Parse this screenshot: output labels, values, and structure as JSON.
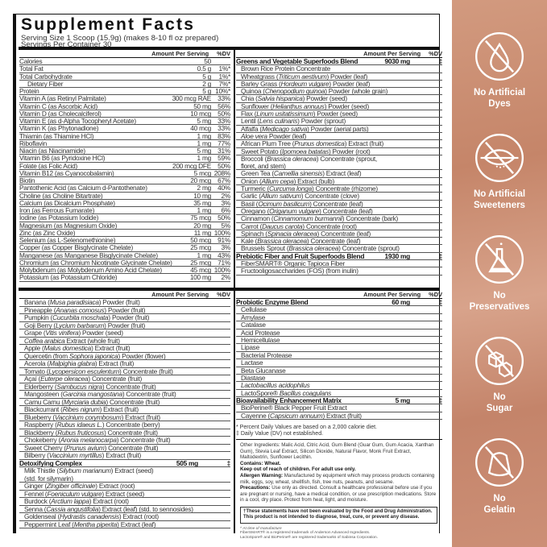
{
  "title": "Supplement Facts",
  "serving_size": "Serving Size 1 Scoop (15.9g) (makes 8-10 fl oz prepared)",
  "servings_per_container": "Servings Per Container 30",
  "header": {
    "amount": "Amount Per Serving",
    "dv": "%DV"
  },
  "nutrients": [
    {
      "n": [
        "Calories"
      ],
      "a": "50",
      "d": ""
    },
    {
      "n": [
        "Total Fat"
      ],
      "a": "0.5 g",
      "d": "1%*"
    },
    {
      "n": [
        "Total Carbohydrate"
      ],
      "a": "5 g",
      "d": "1%*"
    },
    {
      "n": [
        "Dietary Fiber"
      ],
      "a": "2 g",
      "d": "7%*",
      "ind": 1
    },
    {
      "n": [
        "Protein"
      ],
      "a": "5 g",
      "d": "10%*"
    },
    {
      "n": [
        "Vitamin A (as Retinyl Palmitate)"
      ],
      "a": "300 mcg RAE",
      "d": "33%"
    },
    {
      "n": [
        "Vitamin C (as Ascorbic Acid)"
      ],
      "a": "50 mg",
      "d": "56%"
    },
    {
      "n": [
        "Vitamin D (as Cholecalciferol)"
      ],
      "a": "10 mcg",
      "d": "50%"
    },
    {
      "n": [
        "Vitamin E (as d-Alpha Tocopheryl Acetate)"
      ],
      "a": "5 mg",
      "d": "33%"
    },
    {
      "n": [
        "Vitamin K (as Phytonadione)"
      ],
      "a": "40 mcg",
      "d": "33%"
    },
    {
      "n": [
        "Thiamin (as Thiamine HCl)"
      ],
      "a": "1 mg",
      "d": "83%"
    },
    {
      "n": [
        "Riboflavin"
      ],
      "a": "1 mg",
      "d": "77%"
    },
    {
      "n": [
        "Niacin (as Niacinamide)"
      ],
      "a": "5 mg",
      "d": "31%"
    },
    {
      "n": [
        "Vitamin B6 (as Pyridoxine HCl)"
      ],
      "a": "1 mg",
      "d": "59%"
    },
    {
      "n": [
        "Folate (as Folic Acid)"
      ],
      "a": "200 mcg DFE",
      "d": "50%"
    },
    {
      "n": [
        "Vitamin B12 (as Cyanocobalamin)"
      ],
      "a": "5 mcg",
      "d": "208%"
    },
    {
      "n": [
        "Biotin"
      ],
      "a": "20 mcg",
      "d": "67%"
    },
    {
      "n": [
        "Pantothenic Acid (as Calcium d-Pantothenate)"
      ],
      "a": "2 mg",
      "d": "40%"
    },
    {
      "n": [
        "Choline (as Choline Bitartrate)"
      ],
      "a": "10 mg",
      "d": "2%"
    },
    {
      "n": [
        "Calcium (as Dicalcium Phosphate)"
      ],
      "a": "35 mg",
      "d": "3%"
    },
    {
      "n": [
        "Iron (as Ferrous Fumarate)"
      ],
      "a": "1 mg",
      "d": "6%"
    },
    {
      "n": [
        "Iodine (as Potassium Iodide)"
      ],
      "a": "75 mcg",
      "d": "50%"
    },
    {
      "n": [
        "Magnesium (as Magnesium Oxide)"
      ],
      "a": "20 mg",
      "d": "5%"
    },
    {
      "n": [
        "Zinc (as Zinc Oxide)"
      ],
      "a": "11 mg",
      "d": "100%"
    },
    {
      "n": [
        "Selenium (as L-Selenomethionine)"
      ],
      "a": "50 mcg",
      "d": "91%"
    },
    {
      "n": [
        "Copper (as Copper Bisglycinate Chelate)"
      ],
      "a": "25 mcg",
      "d": "3%"
    },
    {
      "n": [
        "Manganese (as Manganese Bisglycinate Chelate)"
      ],
      "a": "1 mg",
      "d": "43%"
    },
    {
      "n": [
        "Chromium (as Chromium Nicotinate Glycinate Chelate)"
      ],
      "a": "25 mcg",
      "d": "71%"
    },
    {
      "n": [
        "Molybdenum (as Molybdenum Amino Acid Chelate)"
      ],
      "a": "45 mcg",
      "d": "100%"
    },
    {
      "n": [
        "Potassium (as Potassium Chloride)"
      ],
      "a": "100 mg",
      "d": "2%"
    }
  ],
  "greens": [
    {
      "n": [
        "Greens and Vegetable Superfoods Blend"
      ],
      "a": "9030 mg",
      "d": "‡",
      "b": 1
    },
    {
      "n": [
        "Brown Rice Protein Concentrate"
      ]
    },
    {
      "n": [
        "Wheatgrass (",
        "Triticum aestivum",
        ") Powder (leaf)"
      ]
    },
    {
      "n": [
        "Barley Grass (",
        "Hordeum vulgare",
        ") Powder (leaf)"
      ]
    },
    {
      "n": [
        "Quinoa (",
        "Chenopodium quinoa",
        ") Powder (whole grain)"
      ]
    },
    {
      "n": [
        "Chia (",
        "Salvia hispanica",
        ") Powder (seed)"
      ]
    },
    {
      "n": [
        "Sunflower (",
        "Helianthus annuus",
        ") Powder (seed)"
      ]
    },
    {
      "n": [
        "Flax (",
        "Linum usitatissimum",
        ") Powder (seed)"
      ]
    },
    {
      "n": [
        "Lentil (",
        "Lens culinaris",
        ") Powder (sprout)"
      ]
    },
    {
      "n": [
        "Alfalfa (",
        "Medicago sativa",
        ") Powder (aerial parts)"
      ]
    },
    {
      "n": [
        "",
        "Aloe vera",
        " Powder (leaf)"
      ]
    },
    {
      "n": [
        "African Plum Tree (",
        "Prunus domestica",
        ") Extract (fruit)"
      ]
    },
    {
      "n": [
        "Sweet Potato (",
        "Ipomoea batatas",
        ") Powder (root)"
      ]
    },
    {
      "n": [
        "Broccoli (",
        "Brassica oleracea",
        ") Concentrate (sprout,"
      ],
      "n2": "floret, and stem)"
    },
    {
      "n": [
        "Green Tea (",
        "Camellia sinensis",
        ") Extract (leaf)"
      ]
    },
    {
      "n": [
        "Onion (",
        "Allium cepa",
        ") Extract (bulb)"
      ]
    },
    {
      "n": [
        "Turmeric (",
        "Curcuma longa",
        ") Concentrate (rhizome)"
      ]
    },
    {
      "n": [
        "Garlic (",
        "Allium sativum",
        ") Concentrate (clove)"
      ]
    },
    {
      "n": [
        "Basil (",
        "Ocimum basilicum",
        ") Concentrate (leaf)"
      ]
    },
    {
      "n": [
        "Oregano (",
        "Origanum vulgare",
        ") Concentrate (leaf)"
      ]
    },
    {
      "n": [
        "Cinnamon (",
        "Cinnamomum burmannii",
        ") Concentrate (bark)"
      ]
    },
    {
      "n": [
        "Carrot (",
        "Daucus carota",
        ") Concentrate (root)"
      ]
    },
    {
      "n": [
        "Spinach (",
        "Spinacia oleracea",
        ") Concentrate (leaf)"
      ]
    },
    {
      "n": [
        "Kale (",
        "Brassica oleracea",
        ") Concentrate (leaf)"
      ]
    },
    {
      "n": [
        "Brussels Sprout (",
        "Brassica oleracea",
        ") Concentrate (sprout)"
      ]
    },
    {
      "n": [
        "Prebiotic Fiber and Fruit Superfoods Blend"
      ],
      "a": "1930 mg",
      "d": "‡",
      "b": 1
    },
    {
      "n": [
        "FiberSMART® Organic Tapioca Fiber"
      ]
    },
    {
      "n": [
        "Fructooligosaccharides (FOS) (from inulin)"
      ]
    }
  ],
  "fruits": [
    {
      "n": [
        "Banana (",
        "Musa paradisiaca",
        ") Powder (fruit)"
      ]
    },
    {
      "n": [
        "Pineapple (",
        "Ananas comosus",
        ") Powder (fruit)"
      ]
    },
    {
      "n": [
        "Pumpkin (",
        "Cucurbita moschata",
        ") Powder (fruit)"
      ]
    },
    {
      "n": [
        "Goji Berry (",
        "Lycium barbarum",
        ") Powder (fruit)"
      ]
    },
    {
      "n": [
        "Grape (",
        "Vitis vinifera",
        ") Powder (seed)"
      ]
    },
    {
      "n": [
        "",
        "Coffea arabica",
        " Extract (whole fruit)"
      ]
    },
    {
      "n": [
        "Apple (",
        "Malus domestica",
        ") Extract (fruit)"
      ]
    },
    {
      "n": [
        "Quercetin (from ",
        "Sophora japonica",
        ") Powder (flower)"
      ]
    },
    {
      "n": [
        "Acerola (",
        "Malpighia glabra",
        ") Extract (fruit)"
      ]
    },
    {
      "n": [
        "Tomato (",
        "Lycopersicon esculentum",
        ") Concentrate (fruit)"
      ]
    },
    {
      "n": [
        "Açaí (",
        "Euterpe oleracea",
        ") Concentrate (fruit)"
      ]
    },
    {
      "n": [
        "Elderberry (",
        "Sambucus nigra",
        ") Concentrate (fruit)"
      ]
    },
    {
      "n": [
        "Mangosteen (",
        "Garcinia mangostana",
        ") Concentrate (fruit)"
      ]
    },
    {
      "n": [
        "Camu Camu (",
        "Myrciaria dubia",
        ") Concentrate (fruit)"
      ]
    },
    {
      "n": [
        "Blackcurrant (",
        "Ribes nigrum",
        ") Extract (fruit)"
      ]
    },
    {
      "n": [
        "Blueberry (",
        "Vaccinium corymbosum",
        ") Extract (fruit)"
      ]
    },
    {
      "n": [
        "Raspberry (",
        "Rubus idaeus L.",
        ") Concentrate (berry)"
      ]
    },
    {
      "n": [
        "Blackberry (",
        "Rubus fruticosus",
        ") Concentrate (fruit)"
      ]
    },
    {
      "n": [
        "Chokeberry (",
        "Aronia melanocarpa",
        ") Concentrate (fruit)"
      ]
    },
    {
      "n": [
        "Sweet Cherry (",
        "Prunus avium",
        ") Concentrate (fruit)"
      ]
    },
    {
      "n": [
        "Bilberry (",
        "Vaccinium myrtillus",
        ") Extract (fruit)"
      ]
    },
    {
      "n": [
        "Detoxifying Complex"
      ],
      "a": "505 mg",
      "d": "‡",
      "b": 1
    },
    {
      "n": [
        "Milk Thistle (",
        "Silybum marianum",
        ") Extract (seed)"
      ],
      "n2": "(std. for silymarin)"
    },
    {
      "n": [
        "Ginger (",
        "Zingiber officinale",
        ") Extract (root)"
      ]
    },
    {
      "n": [
        "Fennel (",
        "Foeniculum vulgare",
        ") Extract (seed)"
      ]
    },
    {
      "n": [
        "Burdock (",
        "Arctium lappa",
        ") Extract (root)"
      ]
    },
    {
      "n": [
        "Senna (",
        "Cassia angustifolia",
        ") Extract (leaf) (std. to sennosides)"
      ]
    },
    {
      "n": [
        "Goldenseal (",
        "Hydrastis canadensis",
        ") Extract (root)"
      ]
    },
    {
      "n": [
        "Peppermint Leaf (",
        "Mentha piperita",
        ") Extract (leaf)"
      ]
    }
  ],
  "enzymes": [
    {
      "n": [
        "Probiotic Enzyme Blend"
      ],
      "a": "60 mg",
      "d": "‡",
      "b": 1
    },
    {
      "n": [
        "Cellulase"
      ]
    },
    {
      "n": [
        "Amylase"
      ]
    },
    {
      "n": [
        "Catalase"
      ]
    },
    {
      "n": [
        "Acid Protease"
      ]
    },
    {
      "n": [
        "Hemicellulase"
      ]
    },
    {
      "n": [
        "Lipase"
      ]
    },
    {
      "n": [
        "Bacterial Protease"
      ]
    },
    {
      "n": [
        "Lactase"
      ]
    },
    {
      "n": [
        "Beta Glucanase"
      ]
    },
    {
      "n": [
        "Diastase"
      ]
    },
    {
      "n": [
        "",
        "Lactobacillus acidophilus",
        ""
      ]
    },
    {
      "n": [
        "LactoSpore® ",
        "Bacillus coagulans",
        ""
      ]
    },
    {
      "n": [
        "Bioavailability Enhancement Matrix"
      ],
      "a": "5 mg",
      "d": "‡",
      "b": 1
    },
    {
      "n": [
        "BioPerine® Black Pepper Fruit Extract"
      ]
    },
    {
      "n": [
        "Cayenne (",
        "Capsicum annuum",
        ") Extract (fruit)"
      ]
    }
  ],
  "footnotes": [
    "* Percent Daily Values are based on a 2,000 calorie diet.",
    "‡ Daily Value (DV) not established."
  ],
  "other": {
    "ingredients": "Other Ingredients: Malic Acid, Citric Acid, Gum Blend (Guar Gum, Gum Acacia, Xanthan Gum), Stevia Leaf Extract, Silicon Dioxide, Natural Flavor, Monk Fruit Extract, Maltodextrin, Sunflower Lecithin.",
    "contains": "Contains: Wheat.",
    "keep": "Keep out of reach of children. For adult use only.",
    "allergen_label": "Allergen Warning:",
    "allergen": " Manufactured by equipment which may process products containing milk, eggs, soy, wheat, shellfish, fish, tree nuts, peanuts, and sesame.",
    "precautions_label": "Precautions:",
    "precautions": " Use only as directed. Consult a healthcare professional before use if you are pregnant or nursing, have a medical condition, or use prescription medications. Store in a cool, dry place. Protect from heat, light, and moisture.",
    "fda": "†These statements have not been evaluated by the Food and Drug Administration. This product is not intended to diagnose, treat, cure, or prevent any disease.",
    "manufacture": "^ At time of manufacture",
    "tm1": "FiberSMART® is a registered trademark of Anderson Advanced Ingredients.",
    "tm2": "LactoSpore® and BioPerine® are registered trademarks of Sabinsa Corporation."
  },
  "badges": [
    {
      "icon": "drop-icon",
      "l1": "No Artificial",
      "l2": "Dyes"
    },
    {
      "icon": "leaf-icon",
      "l1": "No Artificial",
      "l2": "Sweeteners"
    },
    {
      "icon": "flask-icon",
      "l1": "No",
      "l2": "Preservatives"
    },
    {
      "icon": "sugar-cubes-icon",
      "l1": "No",
      "l2": "Sugar"
    },
    {
      "icon": "gelatin-icon",
      "l1": "No",
      "l2": "Gelatin"
    }
  ],
  "colors": {
    "sidebar": "#c98a6f",
    "text": "#222222"
  }
}
